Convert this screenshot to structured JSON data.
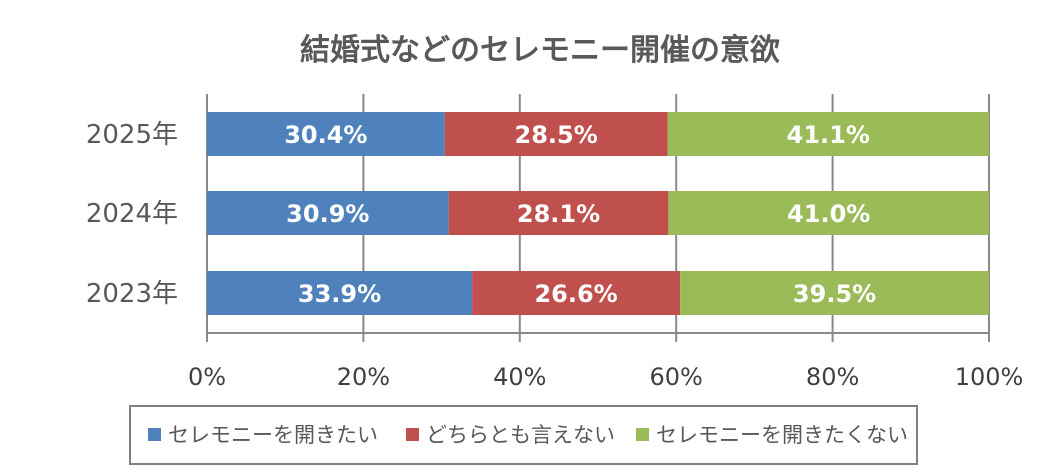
{
  "chart_data": {
    "type": "bar",
    "orientation": "horizontal",
    "stacked": true,
    "title": "結婚式などのセレモニー開催の意欲",
    "categories": [
      "2025年",
      "2024年",
      "2023年"
    ],
    "series": [
      {
        "name": "セレモニーを開きたい",
        "values": [
          30.4,
          30.9,
          33.9
        ],
        "labels": [
          "30.4%",
          "30.9%",
          "33.9%"
        ],
        "color": "#4F81BD"
      },
      {
        "name": "どちらとも言えない",
        "values": [
          28.5,
          28.1,
          26.6
        ],
        "labels": [
          "28.5%",
          "28.1%",
          "26.6%"
        ],
        "color": "#C0504D"
      },
      {
        "name": "セレモニーを開きたくない",
        "values": [
          41.1,
          41.0,
          39.5
        ],
        "labels": [
          "41.1%",
          "41.0%",
          "39.5%"
        ],
        "color": "#9BBB59"
      }
    ],
    "xlim": [
      0,
      100
    ],
    "xticks": [
      0,
      20,
      40,
      60,
      80,
      100
    ],
    "xtick_labels": [
      "0%",
      "20%",
      "40%",
      "60%",
      "80%",
      "100%"
    ],
    "grid": true,
    "legend_position": "bottom"
  }
}
